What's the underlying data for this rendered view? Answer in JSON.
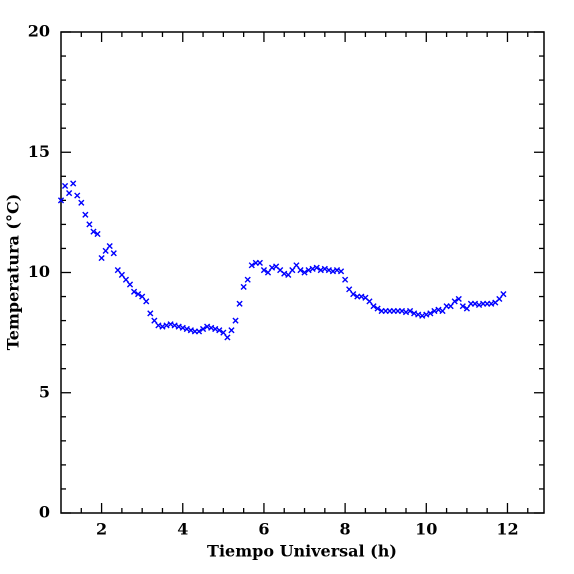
{
  "chart_data": {
    "type": "scatter",
    "x_label": "Tiempo Universal (h)",
    "y_label": "Temperatura (°C)",
    "xlim": [
      1,
      12.9
    ],
    "ylim": [
      0,
      20
    ],
    "xticks": [
      2,
      4,
      6,
      8,
      10,
      12
    ],
    "yticks": [
      0,
      5,
      10,
      15,
      20
    ],
    "x_minor_ticks": [
      1.5,
      2.5,
      3,
      3.5,
      4.5,
      5,
      5.5,
      6.5,
      7,
      7.5,
      8.5,
      9,
      9.5,
      10.5,
      11,
      11.5,
      12.5
    ],
    "y_minor_ticks": [
      1,
      2,
      3,
      4,
      6,
      7,
      8,
      9,
      11,
      12,
      13,
      14,
      16,
      17,
      18,
      19
    ],
    "grid": false,
    "color": "#0000ff",
    "x": [
      1.0,
      1.1,
      1.2,
      1.3,
      1.4,
      1.5,
      1.6,
      1.7,
      1.8,
      1.9,
      2.0,
      2.1,
      2.2,
      2.3,
      2.4,
      2.5,
      2.6,
      2.7,
      2.8,
      2.9,
      3.0,
      3.1,
      3.2,
      3.3,
      3.4,
      3.5,
      3.6,
      3.7,
      3.8,
      3.9,
      4.0,
      4.1,
      4.2,
      4.3,
      4.4,
      4.5,
      4.6,
      4.7,
      4.8,
      4.9,
      5.0,
      5.1,
      5.2,
      5.3,
      5.4,
      5.5,
      5.6,
      5.7,
      5.8,
      5.9,
      6.0,
      6.1,
      6.2,
      6.3,
      6.4,
      6.5,
      6.6,
      6.7,
      6.8,
      6.9,
      7.0,
      7.1,
      7.2,
      7.3,
      7.4,
      7.5,
      7.6,
      7.7,
      7.8,
      7.9,
      8.0,
      8.1,
      8.2,
      8.3,
      8.4,
      8.5,
      8.6,
      8.7,
      8.8,
      8.9,
      9.0,
      9.1,
      9.2,
      9.3,
      9.4,
      9.5,
      9.6,
      9.7,
      9.8,
      9.9,
      10.0,
      10.1,
      10.2,
      10.3,
      10.4,
      10.5,
      10.6,
      10.7,
      10.8,
      10.9,
      11.0,
      11.1,
      11.2,
      11.3,
      11.4,
      11.5,
      11.6,
      11.7,
      11.8,
      11.9
    ],
    "values": [
      13.0,
      13.6,
      13.3,
      13.7,
      13.2,
      12.9,
      12.4,
      12.0,
      11.7,
      11.6,
      10.6,
      10.9,
      11.1,
      10.8,
      10.1,
      9.9,
      9.7,
      9.5,
      9.2,
      9.1,
      9.0,
      8.8,
      8.3,
      8.0,
      7.8,
      7.75,
      7.8,
      7.85,
      7.8,
      7.75,
      7.7,
      7.65,
      7.6,
      7.55,
      7.55,
      7.65,
      7.75,
      7.7,
      7.65,
      7.6,
      7.5,
      7.3,
      7.6,
      8.0,
      8.7,
      9.4,
      9.7,
      10.3,
      10.4,
      10.4,
      10.1,
      10.0,
      10.2,
      10.25,
      10.1,
      9.95,
      9.9,
      10.1,
      10.3,
      10.1,
      10.0,
      10.1,
      10.15,
      10.2,
      10.1,
      10.15,
      10.1,
      10.05,
      10.1,
      10.05,
      9.7,
      9.3,
      9.1,
      9.0,
      9.0,
      8.95,
      8.8,
      8.6,
      8.5,
      8.4,
      8.4,
      8.4,
      8.4,
      8.4,
      8.4,
      8.35,
      8.4,
      8.3,
      8.25,
      8.2,
      8.25,
      8.3,
      8.4,
      8.45,
      8.4,
      8.6,
      8.6,
      8.8,
      8.9,
      8.6,
      8.5,
      8.7,
      8.7,
      8.65,
      8.7,
      8.7,
      8.7,
      8.75,
      8.9,
      9.1
    ]
  }
}
